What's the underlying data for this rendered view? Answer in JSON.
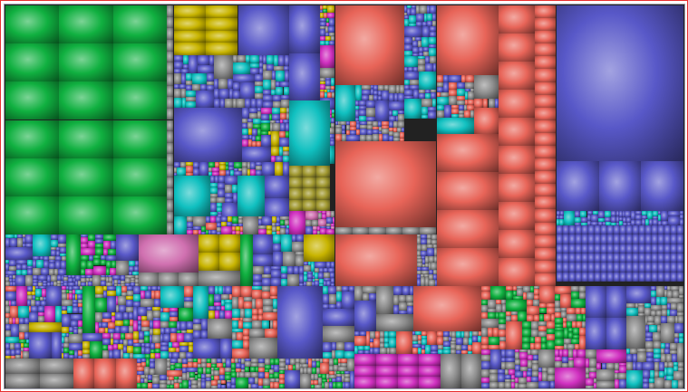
{
  "view": "treemap",
  "palette": {
    "green": "#10b040",
    "blue": "#5858c8",
    "red": "#e86458",
    "yellow": "#c8b400",
    "teal": "#10c0c0",
    "gray": "#8c8c8c",
    "magenta": "#d030c0",
    "olive": "#a09830",
    "pink": "#d070b0",
    "border": "#e83030"
  }
}
